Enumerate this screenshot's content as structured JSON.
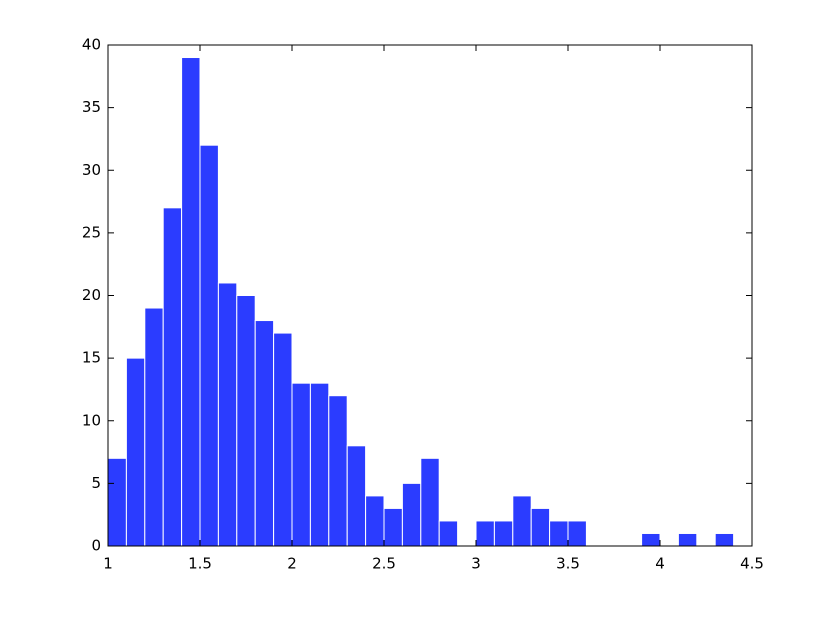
{
  "chart_data": {
    "type": "histogram",
    "bins": [
      1.0,
      1.1,
      1.2,
      1.3,
      1.4,
      1.5,
      1.6,
      1.7,
      1.8,
      1.9,
      2.0,
      2.1,
      2.2,
      2.3,
      2.4,
      2.5,
      2.6,
      2.7,
      2.8,
      2.9,
      3.0,
      3.1,
      3.2,
      3.3,
      3.4,
      3.5,
      3.6,
      3.7,
      3.8,
      3.9,
      4.0,
      4.1,
      4.2,
      4.3,
      4.4
    ],
    "values": [
      7,
      15,
      19,
      27,
      39,
      32,
      21,
      20,
      18,
      17,
      13,
      13,
      12,
      8,
      4,
      3,
      5,
      7,
      2,
      0,
      2,
      2,
      4,
      3,
      2,
      2,
      0,
      0,
      0,
      1,
      0,
      1,
      0,
      1
    ],
    "color": "#2b3cff",
    "xlim": [
      1,
      4.5
    ],
    "xticks": [
      1,
      1.5,
      2,
      2.5,
      3,
      3.5,
      4,
      4.5
    ],
    "ylim": [
      0,
      40
    ],
    "yticks": [
      0,
      5,
      10,
      15,
      20,
      25,
      30,
      35,
      40
    ],
    "grid": false
  }
}
